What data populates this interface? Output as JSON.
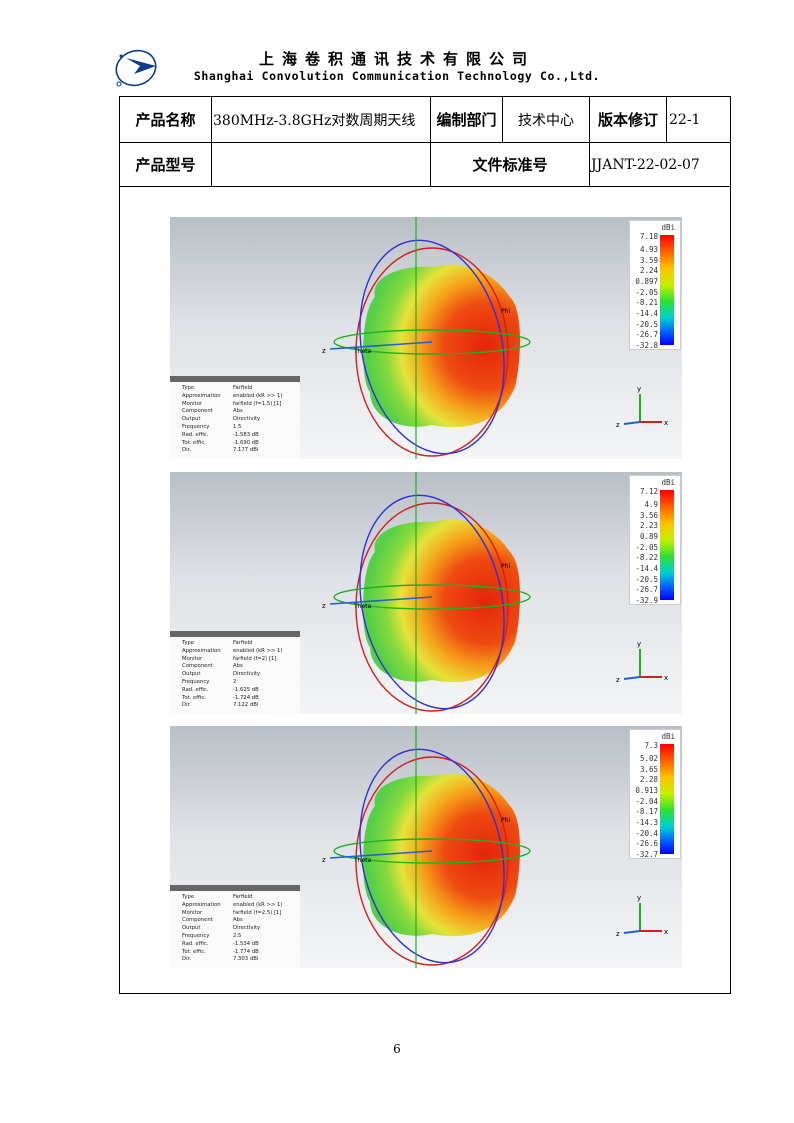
{
  "company": {
    "name_cn": "上海卷积通讯技术有限公司",
    "name_en": "Shanghai Convolution Communication Technology Co.,Ltd."
  },
  "info_table": {
    "product_name_label": "产品名称",
    "product_name_value": "380MHz-3.8GHz对数周期天线",
    "dept_label": "编制部门",
    "dept_value": "技术中心",
    "revision_label": "版本修订",
    "revision_value": "22-1",
    "model_label": "产品型号",
    "model_value": "",
    "doc_std_label": "文件标准号",
    "doc_std_value": "JJANT-22-02-07"
  },
  "panels": [
    {
      "legend_unit": "dBi",
      "legend_values": [
        "7.18",
        "4.93",
        "3.59",
        "2.24",
        "0.897",
        "-2.05",
        "-8.21",
        "-14.4",
        "-20.5",
        "-26.7",
        "-32.8"
      ],
      "info": [
        [
          "Type",
          "Farfield"
        ],
        [
          "Approximation",
          "enabled (kR >> 1)"
        ],
        [
          "Monitor",
          "farfield (f=1.5) [1]"
        ],
        [
          "Component",
          "Abs"
        ],
        [
          "Output",
          "Directivity"
        ],
        [
          "Frequency",
          "1.5"
        ],
        [
          "Rad. effic.",
          "-1.583 dB"
        ],
        [
          "Tot. effic.",
          "-1.690 dB"
        ],
        [
          "Dir.",
          "7.177 dBi"
        ]
      ]
    },
    {
      "legend_unit": "dBi",
      "legend_values": [
        "7.12",
        "4.9",
        "3.56",
        "2.23",
        "0.89",
        "-2.05",
        "-8.22",
        "-14.4",
        "-20.5",
        "-26.7",
        "-32.9"
      ],
      "info": [
        [
          "Type",
          "Farfield"
        ],
        [
          "Approximation",
          "enabled (kR >> 1)"
        ],
        [
          "Monitor",
          "farfield (f=2) [1]"
        ],
        [
          "Component",
          "Abs"
        ],
        [
          "Output",
          "Directivity"
        ],
        [
          "Frequency",
          "2"
        ],
        [
          "Rad. effic.",
          "-1.625 dB"
        ],
        [
          "Tot. effic.",
          "-1.724 dB"
        ],
        [
          "Dir.",
          "7.122 dBi"
        ]
      ]
    },
    {
      "legend_unit": "dBi",
      "legend_values": [
        "7.3",
        "5.02",
        "3.65",
        "2.28",
        "0.913",
        "-2.04",
        "-8.17",
        "-14.3",
        "-20.4",
        "-26.6",
        "-32.7"
      ],
      "info": [
        [
          "Type",
          "Farfield"
        ],
        [
          "Approximation",
          "enabled (kR >> 1)"
        ],
        [
          "Monitor",
          "farfield (f=2.5) [1]"
        ],
        [
          "Component",
          "Abs"
        ],
        [
          "Output",
          "Directivity"
        ],
        [
          "Frequency",
          "2.5"
        ],
        [
          "Rad. effic.",
          "-1.534 dB"
        ],
        [
          "Tot. effic.",
          "-1.774 dB"
        ],
        [
          "Dir.",
          "7.303 dBi"
        ]
      ]
    }
  ],
  "axis_labels": {
    "theta": "Theta",
    "phi": "Phi",
    "x": "x",
    "y": "y",
    "z": "z"
  },
  "page_number": "6"
}
